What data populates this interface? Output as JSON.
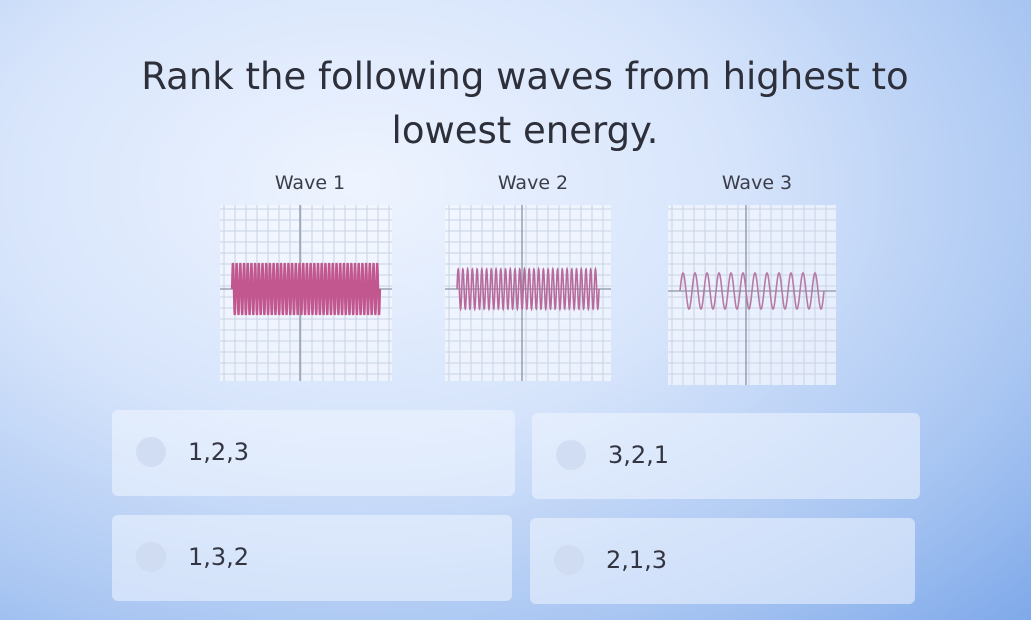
{
  "question": "Rank the following waves from highest to lowest energy.",
  "waves": [
    {
      "label": "Wave 1"
    },
    {
      "label": "Wave 2"
    },
    {
      "label": "Wave 3"
    }
  ],
  "options": [
    "1,2,3",
    "3,2,1",
    "1,3,2",
    "2,1,3"
  ]
}
